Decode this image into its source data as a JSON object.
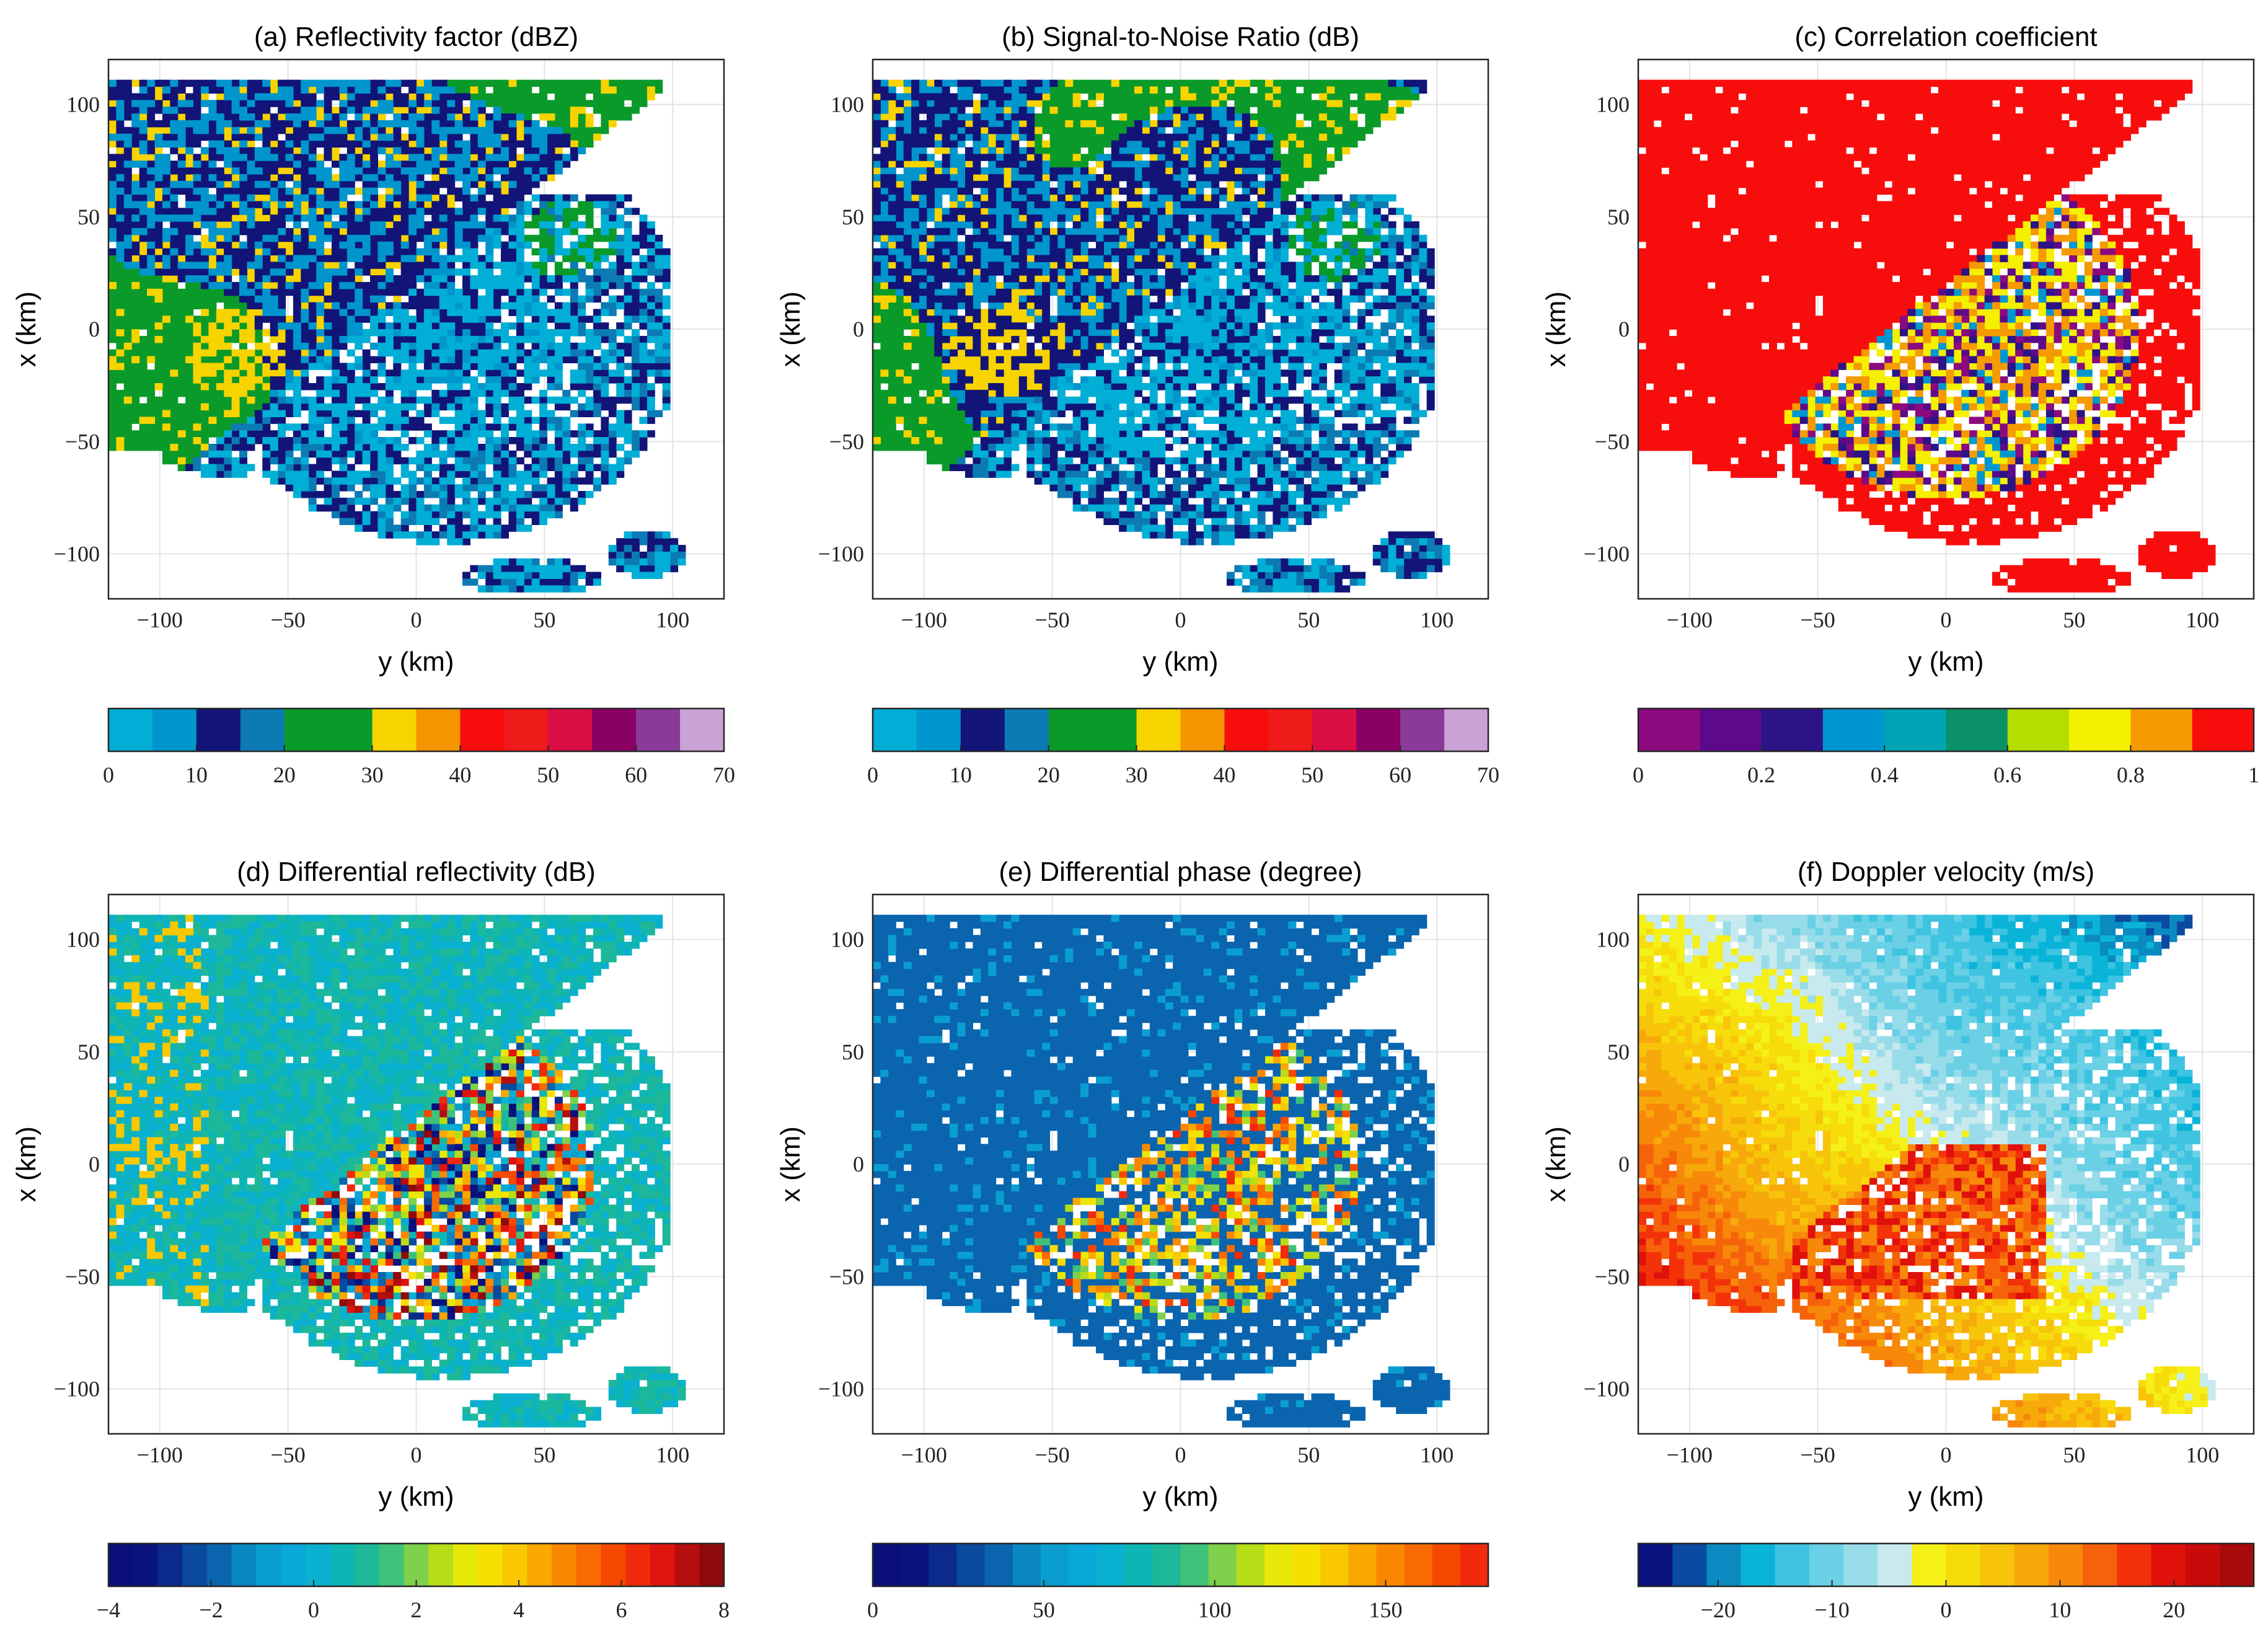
{
  "chart_data": [
    {
      "type": "heatmap",
      "title": "(a) Reflectivity factor (dBZ)",
      "xlabel": "y (km)",
      "ylabel": "x (km)",
      "xlim": [
        -120,
        120
      ],
      "ylim": [
        -120,
        120
      ],
      "xticks": [
        -100,
        -50,
        0,
        50,
        100
      ],
      "yticks": [
        100,
        50,
        0,
        -50,
        -100
      ],
      "xtick_labels": [
        "−100",
        "−50",
        "0",
        "50",
        "100"
      ],
      "ytick_labels": [
        "100",
        "50",
        "0",
        "−50",
        "−100"
      ],
      "grid": true,
      "colorbar": {
        "range": [
          0,
          70
        ],
        "ticks": [
          0,
          10,
          20,
          30,
          40,
          50,
          60,
          70
        ],
        "tick_labels": [
          "0",
          "10",
          "20",
          "30",
          "40",
          "50",
          "60",
          "70"
        ],
        "colors": [
          "#00aed6",
          "#0095cc",
          "#121477",
          "#0c7ab3",
          "#0a9a2a",
          "#0a9a2a",
          "#f7d300",
          "#f59500",
          "#f80d0d",
          "#ef1a1a",
          "#da0e45",
          "#8a0063",
          "#8a3a98",
          "#caa2d6"
        ]
      },
      "field": "reflectivity"
    },
    {
      "type": "heatmap",
      "title": "(b) Signal-to-Noise Ratio (dB)",
      "xlabel": "y (km)",
      "ylabel": "x (km)",
      "xlim": [
        -120,
        120
      ],
      "ylim": [
        -120,
        120
      ],
      "xticks": [
        -100,
        -50,
        0,
        50,
        100
      ],
      "yticks": [
        100,
        50,
        0,
        -50,
        -100
      ],
      "xtick_labels": [
        "−100",
        "−50",
        "0",
        "50",
        "100"
      ],
      "ytick_labels": [
        "100",
        "50",
        "0",
        "−50",
        "−100"
      ],
      "grid": true,
      "colorbar": {
        "range": [
          0,
          70
        ],
        "ticks": [
          0,
          10,
          20,
          30,
          40,
          50,
          60,
          70
        ],
        "tick_labels": [
          "0",
          "10",
          "20",
          "30",
          "40",
          "50",
          "60",
          "70"
        ],
        "colors": [
          "#00aed6",
          "#0095cc",
          "#121477",
          "#0c7ab3",
          "#0a9a2a",
          "#0a9a2a",
          "#f7d300",
          "#f59500",
          "#f80d0d",
          "#ef1a1a",
          "#da0e45",
          "#8a0063",
          "#8a3a98",
          "#caa2d6"
        ]
      },
      "field": "snr"
    },
    {
      "type": "heatmap",
      "title": "(c) Correlation coefficient",
      "xlabel": "y (km)",
      "ylabel": "x (km)",
      "xlim": [
        -120,
        120
      ],
      "ylim": [
        -120,
        120
      ],
      "xticks": [
        -100,
        -50,
        0,
        50,
        100
      ],
      "yticks": [
        100,
        50,
        0,
        -50,
        -100
      ],
      "xtick_labels": [
        "−100",
        "−50",
        "0",
        "50",
        "100"
      ],
      "ytick_labels": [
        "100",
        "50",
        "0",
        "−50",
        "−100"
      ],
      "grid": true,
      "colorbar": {
        "range": [
          0,
          1
        ],
        "ticks": [
          0,
          0.2,
          0.4,
          0.6,
          0.8,
          1
        ],
        "tick_labels": [
          "0",
          "0.2",
          "0.4",
          "0.6",
          "0.8",
          "1"
        ],
        "colors": [
          "#8b0a7e",
          "#5c0a8a",
          "#2c1486",
          "#0097d0",
          "#00a5b5",
          "#0a9168",
          "#b6dd00",
          "#f4f000",
          "#f59a00",
          "#f80d0d"
        ]
      },
      "field": "rhohv"
    },
    {
      "type": "heatmap",
      "title": "(d) Differential reflectivity (dB)",
      "xlabel": "y (km)",
      "ylabel": "x (km)",
      "xlim": [
        -120,
        120
      ],
      "ylim": [
        -120,
        120
      ],
      "xticks": [
        -100,
        -50,
        0,
        50,
        100
      ],
      "yticks": [
        100,
        50,
        0,
        -50,
        -100
      ],
      "xtick_labels": [
        "−100",
        "−50",
        "0",
        "50",
        "100"
      ],
      "ytick_labels": [
        "100",
        "50",
        "0",
        "−50",
        "−100"
      ],
      "grid": true,
      "colorbar": {
        "range": [
          -4,
          8
        ],
        "ticks": [
          -4,
          -2,
          0,
          2,
          4,
          6,
          8
        ],
        "tick_labels": [
          "−4",
          "−2",
          "0",
          "2",
          "4",
          "6",
          "8"
        ],
        "colors": [
          "#0a0f7a",
          "#0a127f",
          "#0b2a8c",
          "#0a4a9e",
          "#0a64ae",
          "#0a86c0",
          "#0a9ed0",
          "#0aa8d8",
          "#0ab0cf",
          "#0fb5b5",
          "#1db89a",
          "#3ec27a",
          "#7fd04a",
          "#b8dc18",
          "#e8e808",
          "#f7e000",
          "#f9c800",
          "#f9a800",
          "#f98800",
          "#f96a00",
          "#f54800",
          "#f02a0a",
          "#df140f",
          "#b40e0e",
          "#8f0a0a"
        ]
      },
      "field": "zdr"
    },
    {
      "type": "heatmap",
      "title": "(e) Differential phase (degree)",
      "xlabel": "y (km)",
      "ylabel": "x (km)",
      "xlim": [
        -120,
        120
      ],
      "ylim": [
        -120,
        120
      ],
      "xticks": [
        -100,
        -50,
        0,
        50,
        100
      ],
      "yticks": [
        100,
        50,
        0,
        -50,
        -100
      ],
      "xtick_labels": [
        "−100",
        "−50",
        "0",
        "50",
        "100"
      ],
      "ytick_labels": [
        "100",
        "50",
        "0",
        "−50",
        "−100"
      ],
      "grid": true,
      "colorbar": {
        "range": [
          0,
          180
        ],
        "ticks": [
          0,
          50,
          100,
          150
        ],
        "tick_labels": [
          "0",
          "50",
          "100",
          "150"
        ],
        "colors": [
          "#0a0f7a",
          "#0a127f",
          "#0b2a8c",
          "#0a4a9e",
          "#0a64ae",
          "#0a86c0",
          "#0a9ed0",
          "#0aa8d8",
          "#0ab0cf",
          "#0fb5b5",
          "#1db89a",
          "#3ec27a",
          "#7fd04a",
          "#b8dc18",
          "#e8e808",
          "#f7e000",
          "#f9c800",
          "#f9a800",
          "#f98800",
          "#f96a00",
          "#f54800",
          "#f02a0a"
        ]
      },
      "field": "phidp"
    },
    {
      "type": "heatmap",
      "title": "(f) Doppler velocity (m/s)",
      "xlabel": "y (km)",
      "ylabel": "x (km)",
      "xlim": [
        -120,
        120
      ],
      "ylim": [
        -120,
        120
      ],
      "xticks": [
        -100,
        -50,
        0,
        50,
        100
      ],
      "yticks": [
        100,
        50,
        0,
        -50,
        -100
      ],
      "xtick_labels": [
        "−100",
        "−50",
        "0",
        "50",
        "100"
      ],
      "ytick_labels": [
        "100",
        "50",
        "0",
        "−50",
        "−100"
      ],
      "grid": true,
      "colorbar": {
        "range": [
          -27,
          27
        ],
        "ticks": [
          -20,
          -10,
          0,
          10,
          20
        ],
        "tick_labels": [
          "−20",
          "−10",
          "0",
          "10",
          "20"
        ],
        "colors": [
          "#0a127f",
          "#0a4aa0",
          "#0a8ac0",
          "#0ab4d8",
          "#3ec4e0",
          "#6ad0e6",
          "#98dcea",
          "#c8eaee",
          "#f4f018",
          "#f6dc0a",
          "#f7c40a",
          "#f7a80a",
          "#f7880a",
          "#f6620a",
          "#f3320a",
          "#e0100a",
          "#c80a0a",
          "#a80a0a"
        ]
      },
      "field": "velocity"
    }
  ]
}
